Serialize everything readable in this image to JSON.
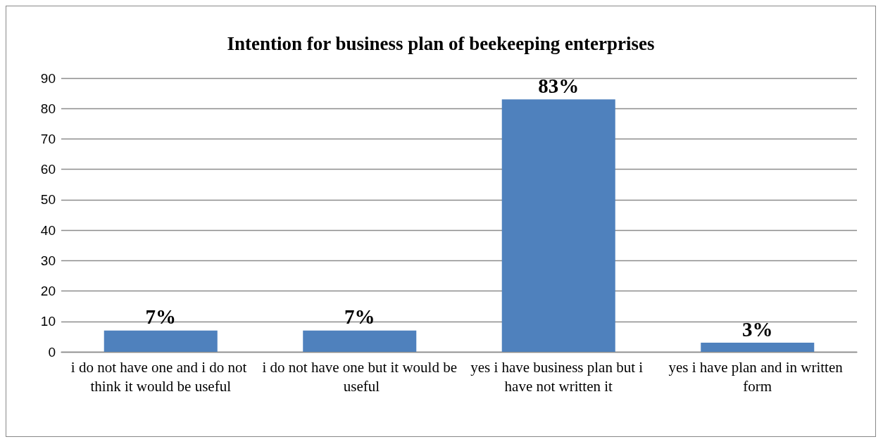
{
  "chart_data": {
    "type": "bar",
    "title": "Intention for business plan of beekeeping enterprises",
    "categories": [
      "i do not have one and i do not think it would be useful",
      "i do not have one but it would be useful",
      "yes i have business plan but i have not written it",
      "yes i have plan and in written form"
    ],
    "values": [
      7,
      7,
      83,
      3
    ],
    "value_labels": [
      "7%",
      "7%",
      "83%",
      "3%"
    ],
    "color": "#4f81bd",
    "ylim": [
      0,
      90
    ],
    "yticks": [
      0,
      10,
      20,
      30,
      40,
      50,
      60,
      70,
      80,
      90
    ],
    "grid": "y"
  }
}
